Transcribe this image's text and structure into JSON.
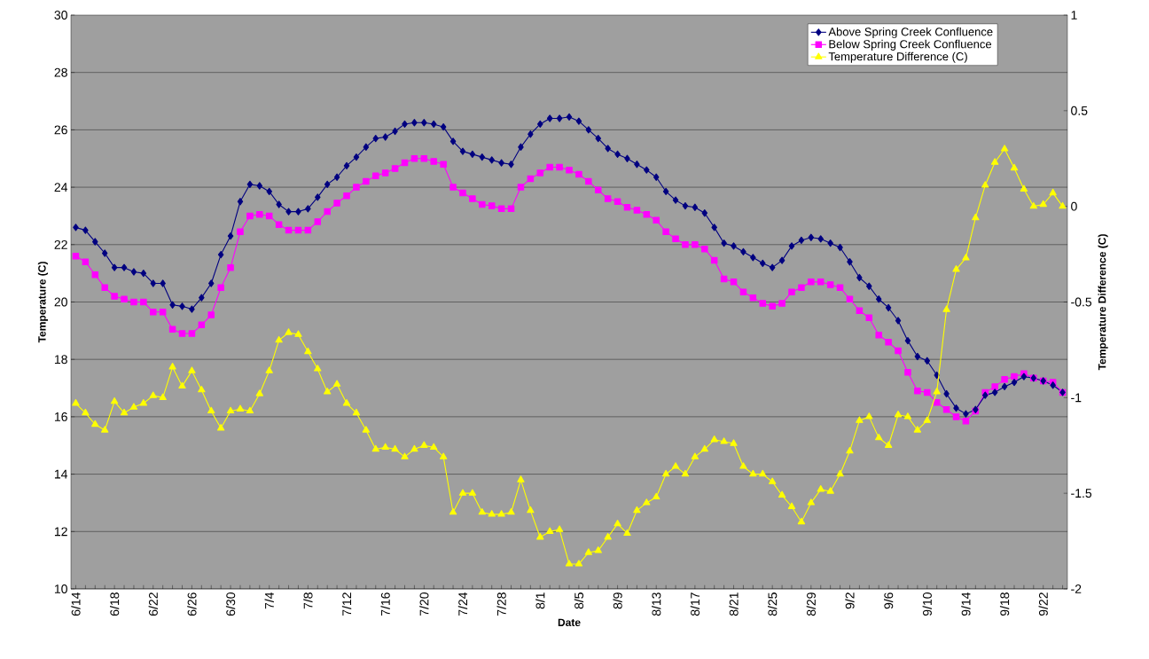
{
  "chart_data": {
    "type": "line",
    "xlabel": "Date",
    "ylabel": "Temperature (C)",
    "y2label": "Temperature Difference (C)",
    "categories": [
      "6/14",
      null,
      null,
      null,
      "6/18",
      null,
      null,
      null,
      "6/22",
      null,
      null,
      null,
      "6/26",
      null,
      null,
      null,
      "6/30",
      null,
      null,
      null,
      "7/4",
      null,
      null,
      null,
      "7/8",
      null,
      null,
      null,
      "7/12",
      null,
      null,
      null,
      "7/16",
      null,
      null,
      null,
      "7/20",
      null,
      null,
      null,
      "7/24",
      null,
      null,
      null,
      "7/28",
      null,
      null,
      null,
      "8/1",
      null,
      null,
      null,
      "8/5",
      null,
      null,
      null,
      "8/9",
      null,
      null,
      null,
      "8/13",
      null,
      null,
      null,
      "8/17",
      null,
      null,
      null,
      "8/21",
      null,
      null,
      null,
      "8/25",
      null,
      null,
      null,
      "8/29",
      null,
      null,
      null,
      "9/2",
      null,
      null,
      null,
      "9/6",
      null,
      null,
      null,
      "9/10",
      null,
      null,
      null,
      "9/14",
      null,
      null,
      null,
      "9/18",
      null,
      null,
      null,
      "9/22",
      null,
      null
    ],
    "series": [
      {
        "name": "Above Spring Creek Confluence",
        "color": "#000080",
        "marker": "diamond",
        "values": [
          22.6,
          22.5,
          22.1,
          21.7,
          21.2,
          21.2,
          21.05,
          21.0,
          20.65,
          20.65,
          19.9,
          19.85,
          19.75,
          20.15,
          20.65,
          21.65,
          22.3,
          23.5,
          24.1,
          24.05,
          23.85,
          23.4,
          23.15,
          23.15,
          23.25,
          23.65,
          24.1,
          24.35,
          24.75,
          25.05,
          25.4,
          25.7,
          25.75,
          25.95,
          26.2,
          26.25,
          26.25,
          26.2,
          26.1,
          25.6,
          25.25,
          25.15,
          25.05,
          24.95,
          24.85,
          24.8,
          25.4,
          25.85,
          26.2,
          26.4,
          26.4,
          26.45,
          26.3,
          26.0,
          25.7,
          25.35,
          25.15,
          25.0,
          24.8,
          24.6,
          24.35,
          23.85,
          23.55,
          23.35,
          23.3,
          23.1,
          22.6,
          22.05,
          21.95,
          21.75,
          21.55,
          21.35,
          21.2,
          21.45,
          21.95,
          22.15,
          22.25,
          22.2,
          22.05,
          21.9,
          21.4,
          20.85,
          20.55,
          20.1,
          19.8,
          19.35,
          18.65,
          18.1,
          17.95,
          17.45,
          16.8,
          16.3,
          16.1,
          16.25,
          16.75,
          16.85,
          17.05,
          17.2,
          17.4,
          17.35,
          17.25,
          17.1,
          16.85
        ]
      },
      {
        "name": "Below Spring Creek Confluence",
        "color": "#ff00ff",
        "marker": "square",
        "values": [
          21.6,
          21.4,
          20.95,
          20.5,
          20.2,
          20.1,
          20.0,
          20.0,
          19.65,
          19.65,
          19.05,
          18.9,
          18.9,
          19.2,
          19.55,
          20.5,
          21.2,
          22.45,
          23.0,
          23.05,
          23.0,
          22.7,
          22.5,
          22.5,
          22.5,
          22.8,
          23.15,
          23.45,
          23.7,
          24.0,
          24.2,
          24.4,
          24.5,
          24.65,
          24.85,
          25.0,
          25.0,
          24.9,
          24.8,
          24.0,
          23.8,
          23.6,
          23.4,
          23.35,
          23.25,
          23.25,
          24.0,
          24.3,
          24.5,
          24.7,
          24.7,
          24.6,
          24.45,
          24.2,
          23.9,
          23.6,
          23.5,
          23.3,
          23.2,
          23.05,
          22.85,
          22.45,
          22.2,
          22.0,
          22.0,
          21.85,
          21.45,
          20.8,
          20.7,
          20.35,
          20.15,
          19.95,
          19.85,
          19.95,
          20.35,
          20.5,
          20.7,
          20.7,
          20.6,
          20.5,
          20.1,
          19.7,
          19.45,
          18.85,
          18.6,
          18.3,
          17.55,
          16.9,
          16.85,
          16.5,
          16.25,
          16.0,
          15.85,
          16.2,
          16.85,
          17.05,
          17.3,
          17.4,
          17.5,
          17.35,
          17.25,
          17.2,
          16.85
        ]
      },
      {
        "name": "Temperature Difference (C)",
        "color": "#ffff00",
        "marker": "triangle",
        "axis": "y2",
        "values": [
          -1.03,
          -1.08,
          -1.14,
          -1.17,
          -1.02,
          -1.08,
          -1.05,
          -1.03,
          -0.99,
          -1.0,
          -0.84,
          -0.94,
          -0.86,
          -0.96,
          -1.07,
          -1.16,
          -1.07,
          -1.06,
          -1.07,
          -0.98,
          -0.86,
          -0.7,
          -0.66,
          -0.67,
          -0.76,
          -0.85,
          -0.97,
          -0.93,
          -1.03,
          -1.08,
          -1.17,
          -1.27,
          -1.26,
          -1.27,
          -1.31,
          -1.27,
          -1.25,
          -1.26,
          -1.31,
          -1.6,
          -1.5,
          -1.5,
          -1.6,
          -1.61,
          -1.61,
          -1.6,
          -1.43,
          -1.59,
          -1.73,
          -1.7,
          -1.69,
          -1.87,
          -1.87,
          -1.81,
          -1.8,
          -1.73,
          -1.66,
          -1.71,
          -1.59,
          -1.55,
          -1.52,
          -1.4,
          -1.36,
          -1.4,
          -1.31,
          -1.27,
          -1.22,
          -1.23,
          -1.24,
          -1.36,
          -1.4,
          -1.4,
          -1.44,
          -1.51,
          -1.57,
          -1.65,
          -1.55,
          -1.48,
          -1.49,
          -1.4,
          -1.28,
          -1.12,
          -1.1,
          -1.21,
          -1.25,
          -1.09,
          -1.1,
          -1.17,
          -1.12,
          -0.97,
          -0.54,
          -0.33,
          -0.27,
          -0.06,
          0.11,
          0.23,
          0.3,
          0.2,
          0.09,
          0.0,
          0.01,
          0.07,
          0.0
        ]
      }
    ],
    "ylim": [
      10,
      30
    ],
    "yticks": [
      10,
      12,
      14,
      16,
      18,
      20,
      22,
      24,
      26,
      28,
      30
    ],
    "y2lim": [
      -2,
      1
    ],
    "y2ticks": [
      -2,
      -1.5,
      -1,
      -0.5,
      0,
      0.5,
      1
    ],
    "grid": "y",
    "legend": "top right"
  }
}
